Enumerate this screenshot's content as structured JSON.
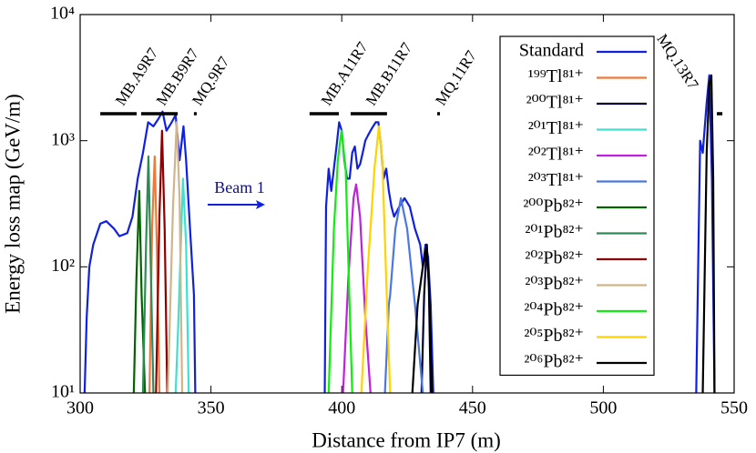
{
  "chart_data": {
    "type": "line",
    "xlabel": "Distance from IP7 (m)",
    "ylabel": "Energy loss map (GeV/m)",
    "xlim": [
      300,
      550
    ],
    "xticks": [
      300,
      350,
      400,
      450,
      500,
      550
    ],
    "ylim": [
      10,
      10000
    ],
    "log_y": true,
    "yticks": [
      {
        "value": 10,
        "label": "10¹"
      },
      {
        "value": 100,
        "label": "10²"
      },
      {
        "value": 1000,
        "label": "10³"
      },
      {
        "value": 10000,
        "label": "10⁴"
      }
    ],
    "annotation": "Beam 1",
    "magnets": [
      {
        "label": "MB.A9R7",
        "start": 307.7,
        "end": 321.6
      },
      {
        "label": "MB.B9R7",
        "start": 323.3,
        "end": 337.3
      },
      {
        "label": "MQ.9R7",
        "start": 343.5,
        "end": 344.5
      },
      {
        "label": "MB.A11R7",
        "start": 387.7,
        "end": 398.9
      },
      {
        "label": "MB.B11R7",
        "start": 403.4,
        "end": 417.3
      },
      {
        "label": "MQ.11R7",
        "start": 436.5,
        "end": 437.5
      },
      {
        "label": "MQ.13R7",
        "start": 543.4,
        "end": 545.5
      }
    ],
    "legend": "upper right",
    "series": [
      {
        "name": "Standard",
        "color": "#1020e0",
        "x": [
          301.7,
          302.5,
          303.5,
          305,
          307.7,
          310,
          313,
          315,
          318,
          320,
          322,
          324,
          326,
          328,
          330,
          331.5,
          333,
          335,
          336.5,
          338,
          339.5,
          340.5,
          342,
          343.5,
          344,
          370,
          393.5,
          394,
          395,
          396,
          397,
          398,
          399,
          400,
          401,
          402,
          403,
          404,
          405,
          406,
          407,
          408,
          409,
          410,
          411,
          412,
          413,
          414,
          415,
          416,
          417,
          418,
          419,
          420,
          422,
          424,
          426,
          428,
          430,
          431,
          432,
          433,
          434,
          435,
          480,
          535.5,
          537,
          538,
          539.5,
          540.5,
          541.5,
          542.5
        ],
        "values": [
          10,
          40,
          100,
          150,
          220,
          230,
          200,
          175,
          185,
          250,
          500,
          800,
          1400,
          1300,
          1500,
          1700,
          1200,
          1400,
          1600,
          700,
          1300,
          700,
          200,
          60,
          10,
          null,
          10,
          300,
          600,
          400,
          600,
          900,
          1400,
          1200,
          700,
          500,
          500,
          800,
          900,
          600,
          650,
          800,
          1000,
          1100,
          1200,
          1300,
          1400,
          1400,
          900,
          500,
          600,
          400,
          300,
          250,
          300,
          350,
          300,
          200,
          150,
          100,
          150,
          120,
          50,
          10,
          null,
          10,
          1000,
          800,
          2000,
          3300,
          500,
          10
        ]
      },
      {
        "name": "¹⁹⁹Tl⁸¹⁺",
        "color": "#f07838",
        "x": [
          326.5,
          327.5,
          328.5,
          329.3,
          330.3
        ],
        "values": [
          10,
          200,
          750,
          150,
          10
        ]
      },
      {
        "name": "²⁰⁰Tl⁸¹⁺",
        "color": "#000033",
        "x": [
          430.5,
          431.5,
          432.5,
          433.3,
          434
        ],
        "values": [
          10,
          60,
          150,
          70,
          10
        ]
      },
      {
        "name": "²⁰¹Tl⁸¹⁺",
        "color": "#40e0d0",
        "x": [
          336.5,
          337.5,
          339.3,
          340.5,
          341.5
        ],
        "values": [
          10,
          35,
          500,
          150,
          10
        ]
      },
      {
        "name": "²⁰²Tl⁸¹⁺",
        "color": "#c020e0",
        "x": [
          400.5,
          402.5,
          404.5,
          405.5,
          407,
          409,
          411
        ],
        "values": [
          10,
          80,
          350,
          450,
          250,
          40,
          10
        ]
      },
      {
        "name": "²⁰³Tl⁸¹⁺",
        "color": "#4a78e0",
        "x": [
          416.5,
          418,
          418.5,
          420.5,
          422.6,
          425,
          428,
          431
        ],
        "values": [
          10,
          50,
          60,
          200,
          350,
          200,
          50,
          10
        ]
      },
      {
        "name": "²⁰⁰Pb⁸²⁺",
        "color": "#006400",
        "x": [
          320.5,
          321.5,
          322.6,
          323.5,
          324.8
        ],
        "values": [
          10,
          80,
          400,
          60,
          10
        ]
      },
      {
        "name": "²⁰¹Pb⁸²⁺",
        "color": "#2e8b57",
        "x": [
          324,
          325.2,
          326.1,
          327,
          328
        ],
        "values": [
          10,
          150,
          750,
          100,
          10
        ]
      },
      {
        "name": "²⁰²Pb⁸²⁺",
        "color": "#8b0000",
        "x": [
          329,
          330.3,
          331.3,
          332.3,
          333.3
        ],
        "values": [
          10,
          250,
          1200,
          200,
          10
        ]
      },
      {
        "name": "²⁰³Pb⁸²⁺",
        "color": "#d2b48c",
        "x": [
          333.5,
          335.5,
          336.9,
          338,
          339
        ],
        "values": [
          10,
          300,
          1400,
          350,
          10
        ]
      },
      {
        "name": "²⁰⁴Pb⁸²⁺",
        "color": "#10ee10",
        "x": [
          395,
          397,
          398.5,
          399.9,
          401.5,
          403,
          404
        ],
        "values": [
          10,
          200,
          700,
          1200,
          600,
          50,
          10
        ]
      },
      {
        "name": "²⁰⁵Pb⁸²⁺",
        "color": "#ffd200",
        "x": [
          407.5,
          410,
          412.5,
          414.2,
          415.5,
          417,
          418.5
        ],
        "values": [
          10,
          100,
          600,
          1300,
          700,
          80,
          10
        ]
      },
      {
        "name": "²⁰⁶Pb⁸²⁺",
        "color": "#000000",
        "x": [
          427,
          429,
          431,
          432.5,
          433.5,
          434.5,
          480,
          538,
          539.5,
          540.5,
          541.3,
          542,
          542.5
        ],
        "values": [
          10,
          50,
          100,
          150,
          60,
          10,
          null,
          10,
          800,
          2800,
          3300,
          500,
          10
        ]
      }
    ]
  }
}
